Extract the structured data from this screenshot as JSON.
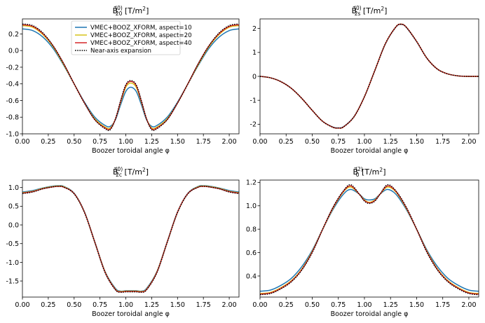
{
  "chart_data": [
    {
      "type": "line",
      "title_base": "B̃",
      "title_sup": "(0)",
      "title_sub": "20",
      "title_unit": "[T/m",
      "title_unit_sup": "2",
      "title_unit_end": "]",
      "xlabel": "Boozer toroidal angle φ",
      "ylabel": "",
      "xlim": [
        0,
        2.0944
      ],
      "ylim": [
        -1.0,
        0.38
      ],
      "xticks": [
        "0.00",
        "0.25",
        "0.50",
        "0.75",
        "1.00",
        "1.25",
        "1.50",
        "1.75",
        "2.00"
      ],
      "yticks": [
        "-1.0",
        "-0.8",
        "-0.6",
        "-0.4",
        "-0.2",
        "0.0",
        "0.2"
      ],
      "ytick_values": [
        -1.0,
        -0.8,
        -0.6,
        -0.4,
        -0.2,
        0.0,
        0.2
      ],
      "legend": {
        "placement": "top-center",
        "entries": [
          "VMEC+BOOZ_XFORM, aspect=10",
          "VMEC+BOOZ_XFORM, aspect=20",
          "VMEC+BOOZ_XFORM, aspect=40",
          "Near-axis expansion"
        ]
      },
      "x": [
        0,
        0.1,
        0.2,
        0.3,
        0.4,
        0.5,
        0.6,
        0.7,
        0.8,
        0.85,
        0.9,
        0.95,
        1.0,
        1.047,
        1.1,
        1.15,
        1.2,
        1.25,
        1.3,
        1.4,
        1.5,
        1.6,
        1.7,
        1.8,
        1.9,
        2.0,
        2.0944
      ],
      "series": [
        {
          "name": "VMEC+BOOZ_XFORM, aspect=10",
          "values": [
            0.26,
            0.24,
            0.16,
            0.02,
            -0.18,
            -0.4,
            -0.62,
            -0.8,
            -0.9,
            -0.91,
            -0.83,
            -0.65,
            -0.49,
            -0.44,
            -0.49,
            -0.65,
            -0.83,
            -0.91,
            -0.9,
            -0.8,
            -0.62,
            -0.4,
            -0.18,
            0.02,
            0.16,
            0.24,
            0.26
          ]
        },
        {
          "name": "VMEC+BOOZ_XFORM, aspect=20",
          "values": [
            0.3,
            0.28,
            0.19,
            0.04,
            -0.17,
            -0.4,
            -0.63,
            -0.82,
            -0.92,
            -0.93,
            -0.82,
            -0.62,
            -0.44,
            -0.39,
            -0.44,
            -0.62,
            -0.82,
            -0.93,
            -0.92,
            -0.82,
            -0.63,
            -0.4,
            -0.17,
            0.04,
            0.19,
            0.28,
            0.3
          ]
        },
        {
          "name": "VMEC+BOOZ_XFORM, aspect=40",
          "values": [
            0.31,
            0.29,
            0.2,
            0.05,
            -0.16,
            -0.4,
            -0.63,
            -0.83,
            -0.93,
            -0.94,
            -0.82,
            -0.61,
            -0.42,
            -0.37,
            -0.42,
            -0.61,
            -0.82,
            -0.94,
            -0.93,
            -0.83,
            -0.63,
            -0.4,
            -0.16,
            0.05,
            0.2,
            0.29,
            0.31
          ]
        },
        {
          "name": "Near-axis expansion",
          "values": [
            0.32,
            0.3,
            0.21,
            0.05,
            -0.16,
            -0.4,
            -0.63,
            -0.83,
            -0.94,
            -0.95,
            -0.82,
            -0.6,
            -0.41,
            -0.36,
            -0.41,
            -0.6,
            -0.82,
            -0.95,
            -0.94,
            -0.83,
            -0.63,
            -0.4,
            -0.16,
            0.05,
            0.21,
            0.3,
            0.32
          ]
        }
      ]
    },
    {
      "type": "line",
      "title_base": "B̃",
      "title_sup": "(0)",
      "title_sub": "2s",
      "title_unit": "[T/m",
      "title_unit_sup": "2",
      "title_unit_end": "]",
      "xlabel": "Boozer toroidal angle φ",
      "ylabel": "",
      "xlim": [
        0,
        2.0944
      ],
      "ylim": [
        -2.4,
        2.4
      ],
      "xticks": [
        "0.00",
        "0.25",
        "0.50",
        "0.75",
        "1.00",
        "1.25",
        "1.50",
        "1.75",
        "2.00"
      ],
      "yticks": [
        "-2",
        "-1",
        "0",
        "1",
        "2"
      ],
      "ytick_values": [
        -2,
        -1,
        0,
        1,
        2
      ],
      "x": [
        0,
        0.1,
        0.2,
        0.3,
        0.4,
        0.5,
        0.6,
        0.7,
        0.75,
        0.8,
        0.9,
        1.0,
        1.1,
        1.2,
        1.3,
        1.35,
        1.4,
        1.5,
        1.6,
        1.7,
        1.8,
        1.9,
        2.0,
        2.0944
      ],
      "series": [
        {
          "name": "VMEC+BOOZ_XFORM, aspect=10",
          "values": [
            0,
            -0.06,
            -0.22,
            -0.5,
            -0.92,
            -1.42,
            -1.88,
            -2.12,
            -2.15,
            -2.1,
            -1.68,
            -0.85,
            0.25,
            1.35,
            2.05,
            2.17,
            2.05,
            1.45,
            0.75,
            0.3,
            0.1,
            0.02,
            0.0,
            0
          ]
        },
        {
          "name": "VMEC+BOOZ_XFORM, aspect=20",
          "values": [
            0,
            -0.06,
            -0.22,
            -0.5,
            -0.92,
            -1.42,
            -1.88,
            -2.13,
            -2.16,
            -2.11,
            -1.69,
            -0.85,
            0.25,
            1.36,
            2.06,
            2.18,
            2.06,
            1.46,
            0.75,
            0.3,
            0.1,
            0.02,
            0.0,
            0
          ]
        },
        {
          "name": "VMEC+BOOZ_XFORM, aspect=40",
          "values": [
            0,
            -0.06,
            -0.22,
            -0.5,
            -0.92,
            -1.42,
            -1.88,
            -2.13,
            -2.16,
            -2.11,
            -1.69,
            -0.85,
            0.25,
            1.36,
            2.06,
            2.18,
            2.06,
            1.46,
            0.75,
            0.3,
            0.1,
            0.02,
            0.0,
            0
          ]
        },
        {
          "name": "Near-axis expansion",
          "values": [
            0,
            -0.06,
            -0.22,
            -0.5,
            -0.92,
            -1.42,
            -1.88,
            -2.13,
            -2.16,
            -2.11,
            -1.69,
            -0.85,
            0.25,
            1.36,
            2.06,
            2.18,
            2.06,
            1.46,
            0.75,
            0.3,
            0.1,
            0.02,
            0.0,
            0
          ]
        }
      ]
    },
    {
      "type": "line",
      "title_base": "B̃",
      "title_sup": "(0)",
      "title_sub": "2c",
      "title_unit": "[T/m",
      "title_unit_sup": "2",
      "title_unit_end": "]",
      "xlabel": "Boozer toroidal angle φ",
      "ylabel": "",
      "xlim": [
        0,
        2.0944
      ],
      "ylim": [
        -1.93,
        1.2
      ],
      "xticks": [
        "0.00",
        "0.25",
        "0.50",
        "0.75",
        "1.00",
        "1.25",
        "1.50",
        "1.75",
        "2.00"
      ],
      "yticks": [
        "-1.5",
        "-1.0",
        "-0.5",
        "0.0",
        "0.5",
        "1.0"
      ],
      "ytick_values": [
        -1.5,
        -1.0,
        -0.5,
        0.0,
        0.5,
        1.0
      ],
      "x": [
        0,
        0.1,
        0.2,
        0.3,
        0.35,
        0.4,
        0.5,
        0.6,
        0.7,
        0.8,
        0.9,
        0.95,
        1.0,
        1.047,
        1.1,
        1.15,
        1.2,
        1.3,
        1.4,
        1.5,
        1.6,
        1.7,
        1.75,
        1.8,
        1.9,
        2.0,
        2.0944
      ],
      "series": [
        {
          "name": "VMEC+BOOZ_XFORM, aspect=10",
          "values": [
            0.88,
            0.92,
            0.99,
            1.04,
            1.05,
            1.03,
            0.85,
            0.35,
            -0.45,
            -1.25,
            -1.7,
            -1.77,
            -1.76,
            -1.76,
            -1.76,
            -1.77,
            -1.7,
            -1.25,
            -0.45,
            0.35,
            0.85,
            1.03,
            1.05,
            1.04,
            0.99,
            0.92,
            0.88
          ]
        },
        {
          "name": "VMEC+BOOZ_XFORM, aspect=20",
          "values": [
            0.86,
            0.9,
            0.98,
            1.03,
            1.04,
            1.02,
            0.84,
            0.34,
            -0.46,
            -1.26,
            -1.72,
            -1.78,
            -1.77,
            -1.77,
            -1.77,
            -1.78,
            -1.72,
            -1.26,
            -0.46,
            0.34,
            0.84,
            1.02,
            1.04,
            1.03,
            0.98,
            0.9,
            0.86
          ]
        },
        {
          "name": "VMEC+BOOZ_XFORM, aspect=40",
          "values": [
            0.85,
            0.89,
            0.97,
            1.02,
            1.03,
            1.01,
            0.84,
            0.34,
            -0.46,
            -1.27,
            -1.73,
            -1.79,
            -1.78,
            -1.78,
            -1.78,
            -1.79,
            -1.73,
            -1.27,
            -0.46,
            0.34,
            0.84,
            1.01,
            1.03,
            1.02,
            0.97,
            0.89,
            0.85
          ]
        },
        {
          "name": "Near-axis expansion",
          "values": [
            0.84,
            0.88,
            0.97,
            1.02,
            1.03,
            1.01,
            0.83,
            0.33,
            -0.47,
            -1.28,
            -1.74,
            -1.8,
            -1.79,
            -1.79,
            -1.79,
            -1.8,
            -1.74,
            -1.28,
            -0.47,
            0.33,
            0.83,
            1.01,
            1.03,
            1.02,
            0.97,
            0.88,
            0.84
          ]
        }
      ]
    },
    {
      "type": "line",
      "title_base": "B̃",
      "title_sup": "(2)",
      "title_sub": "0",
      "title_unit": "[T/m",
      "title_unit_sup": "2",
      "title_unit_end": "]",
      "xlabel": "Boozer toroidal angle φ",
      "ylabel": "",
      "xlim": [
        0,
        2.0944
      ],
      "ylim": [
        0.22,
        1.22
      ],
      "xticks": [
        "0.00",
        "0.25",
        "0.50",
        "0.75",
        "1.00",
        "1.25",
        "1.50",
        "1.75",
        "2.00"
      ],
      "yticks": [
        "0.4",
        "0.6",
        "0.8",
        "1.0",
        "1.2"
      ],
      "ytick_values": [
        0.4,
        0.6,
        0.8,
        1.0,
        1.2
      ],
      "x": [
        0,
        0.1,
        0.2,
        0.3,
        0.4,
        0.5,
        0.6,
        0.7,
        0.8,
        0.87,
        0.95,
        1.0,
        1.047,
        1.1,
        1.15,
        1.22,
        1.3,
        1.4,
        1.5,
        1.6,
        1.7,
        1.8,
        1.9,
        2.0,
        2.0944
      ],
      "series": [
        {
          "name": "VMEC+BOOZ_XFORM, aspect=10",
          "values": [
            0.27,
            0.28,
            0.32,
            0.38,
            0.48,
            0.62,
            0.8,
            0.97,
            1.1,
            1.14,
            1.1,
            1.06,
            1.05,
            1.06,
            1.1,
            1.14,
            1.1,
            0.97,
            0.8,
            0.62,
            0.48,
            0.38,
            0.32,
            0.28,
            0.27
          ]
        },
        {
          "name": "VMEC+BOOZ_XFORM, aspect=20",
          "values": [
            0.25,
            0.26,
            0.3,
            0.36,
            0.46,
            0.61,
            0.8,
            0.98,
            1.12,
            1.16,
            1.1,
            1.05,
            1.03,
            1.05,
            1.1,
            1.16,
            1.12,
            0.98,
            0.8,
            0.61,
            0.46,
            0.36,
            0.3,
            0.26,
            0.25
          ]
        },
        {
          "name": "VMEC+BOOZ_XFORM, aspect=40",
          "values": [
            0.245,
            0.255,
            0.295,
            0.355,
            0.455,
            0.605,
            0.8,
            0.985,
            1.125,
            1.17,
            1.1,
            1.045,
            1.025,
            1.045,
            1.1,
            1.17,
            1.125,
            0.985,
            0.8,
            0.605,
            0.455,
            0.355,
            0.295,
            0.255,
            0.245
          ]
        },
        {
          "name": "Near-axis expansion",
          "values": [
            0.24,
            0.25,
            0.29,
            0.35,
            0.45,
            0.6,
            0.8,
            0.99,
            1.13,
            1.18,
            1.1,
            1.04,
            1.02,
            1.04,
            1.1,
            1.18,
            1.13,
            0.99,
            0.8,
            0.6,
            0.45,
            0.35,
            0.29,
            0.25,
            0.24
          ]
        }
      ]
    }
  ],
  "colors": {
    "aspect10": "#1f77b4",
    "aspect20": "#d6c41a",
    "aspect40": "#d62728",
    "near_axis": "#000000"
  }
}
